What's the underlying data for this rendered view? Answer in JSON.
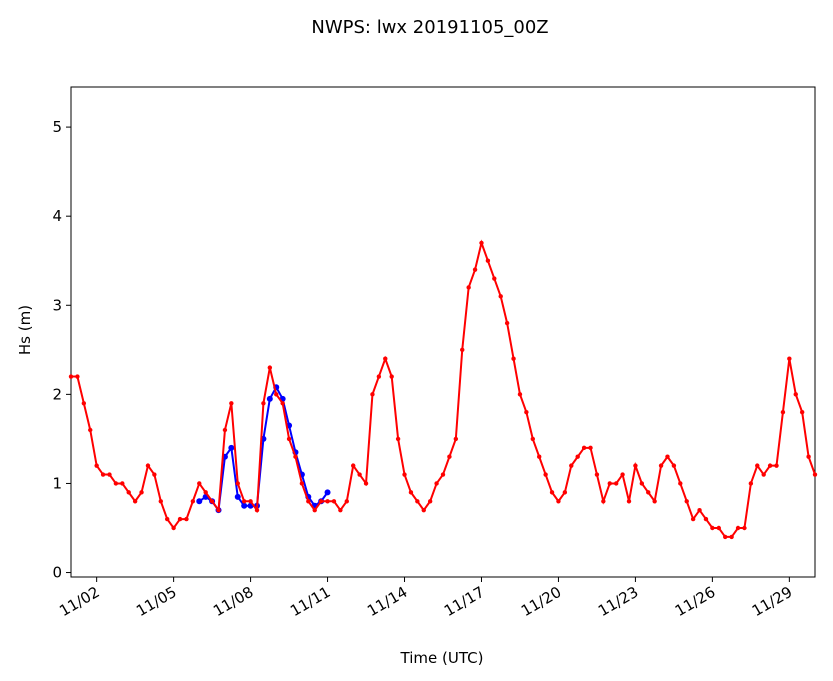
{
  "chart_data": {
    "type": "line",
    "title": "NWPS: lwx 20191105_00Z",
    "xlabel": "Time (UTC)",
    "ylabel": "Hs (m)",
    "xlim": [
      "2019-11-01T00",
      "2019-11-30T00"
    ],
    "xticks": [
      {
        "value": "2019-11-02T00",
        "label": "11/02"
      },
      {
        "value": "2019-11-05T00",
        "label": "11/05"
      },
      {
        "value": "2019-11-08T00",
        "label": "11/08"
      },
      {
        "value": "2019-11-11T00",
        "label": "11/11"
      },
      {
        "value": "2019-11-14T00",
        "label": "11/14"
      },
      {
        "value": "2019-11-17T00",
        "label": "11/17"
      },
      {
        "value": "2019-11-20T00",
        "label": "11/20"
      },
      {
        "value": "2019-11-23T00",
        "label": "11/23"
      },
      {
        "value": "2019-11-26T00",
        "label": "11/26"
      },
      {
        "value": "2019-11-29T00",
        "label": "11/29"
      }
    ],
    "ylim": [
      -0.05,
      5.45
    ],
    "yticks": [
      0,
      1,
      2,
      3,
      4,
      5
    ],
    "series": [
      {
        "color": "#0000ff",
        "x": [
          "2019-11-06T00",
          "2019-11-06T06",
          "2019-11-06T12",
          "2019-11-06T18",
          "2019-11-07T00",
          "2019-11-07T06",
          "2019-11-07T12",
          "2019-11-07T18",
          "2019-11-08T00",
          "2019-11-08T06",
          "2019-11-08T12",
          "2019-11-08T18",
          "2019-11-09T00",
          "2019-11-09T06",
          "2019-11-09T12",
          "2019-11-09T18",
          "2019-11-10T00",
          "2019-11-10T06",
          "2019-11-10T12",
          "2019-11-10T18",
          "2019-11-11T00"
        ],
        "values": [
          0.8,
          0.85,
          0.8,
          0.7,
          1.3,
          1.4,
          0.85,
          0.75,
          0.75,
          0.75,
          1.5,
          1.95,
          2.08,
          1.95,
          1.65,
          1.35,
          1.1,
          0.85,
          0.75,
          0.8,
          0.9
        ]
      },
      {
        "color": "#ff0000",
        "x": [
          "2019-11-01T00",
          "2019-11-01T06",
          "2019-11-01T12",
          "2019-11-01T18",
          "2019-11-02T00",
          "2019-11-02T06",
          "2019-11-02T12",
          "2019-11-02T18",
          "2019-11-03T00",
          "2019-11-03T06",
          "2019-11-03T12",
          "2019-11-03T18",
          "2019-11-04T00",
          "2019-11-04T06",
          "2019-11-04T12",
          "2019-11-04T18",
          "2019-11-05T00",
          "2019-11-05T06",
          "2019-11-05T12",
          "2019-11-05T18",
          "2019-11-06T00",
          "2019-11-06T06",
          "2019-11-06T12",
          "2019-11-06T18",
          "2019-11-07T00",
          "2019-11-07T06",
          "2019-11-07T12",
          "2019-11-07T18",
          "2019-11-08T00",
          "2019-11-08T06",
          "2019-11-08T12",
          "2019-11-08T18",
          "2019-11-09T00",
          "2019-11-09T06",
          "2019-11-09T12",
          "2019-11-09T18",
          "2019-11-10T00",
          "2019-11-10T06",
          "2019-11-10T12",
          "2019-11-10T18",
          "2019-11-11T00",
          "2019-11-11T06",
          "2019-11-11T12",
          "2019-11-11T18",
          "2019-11-12T00",
          "2019-11-12T06",
          "2019-11-12T12",
          "2019-11-12T18",
          "2019-11-13T00",
          "2019-11-13T06",
          "2019-11-13T12",
          "2019-11-13T18",
          "2019-11-14T00",
          "2019-11-14T06",
          "2019-11-14T12",
          "2019-11-14T18",
          "2019-11-15T00",
          "2019-11-15T06",
          "2019-11-15T12",
          "2019-11-15T18",
          "2019-11-16T00",
          "2019-11-16T06",
          "2019-11-16T12",
          "2019-11-16T18",
          "2019-11-17T00",
          "2019-11-17T06",
          "2019-11-17T12",
          "2019-11-17T18",
          "2019-11-18T00",
          "2019-11-18T06",
          "2019-11-18T12",
          "2019-11-18T18",
          "2019-11-19T00",
          "2019-11-19T06",
          "2019-11-19T12",
          "2019-11-19T18",
          "2019-11-20T00",
          "2019-11-20T06",
          "2019-11-20T12",
          "2019-11-20T18",
          "2019-11-21T00",
          "2019-11-21T06",
          "2019-11-21T12",
          "2019-11-21T18",
          "2019-11-22T00",
          "2019-11-22T06",
          "2019-11-22T12",
          "2019-11-22T18",
          "2019-11-23T00",
          "2019-11-23T06",
          "2019-11-23T12",
          "2019-11-23T18",
          "2019-11-24T00",
          "2019-11-24T06",
          "2019-11-24T12",
          "2019-11-24T18",
          "2019-11-25T00",
          "2019-11-25T06",
          "2019-11-25T12",
          "2019-11-25T18",
          "2019-11-26T00",
          "2019-11-26T06",
          "2019-11-26T12",
          "2019-11-26T18",
          "2019-11-27T00",
          "2019-11-27T06",
          "2019-11-27T12",
          "2019-11-27T18",
          "2019-11-28T00",
          "2019-11-28T06",
          "2019-11-28T12",
          "2019-11-28T18",
          "2019-11-29T00",
          "2019-11-29T06",
          "2019-11-29T12",
          "2019-11-29T18",
          "2019-11-30T00"
        ],
        "values": [
          2.2,
          2.2,
          1.9,
          1.6,
          1.2,
          1.1,
          1.1,
          1.0,
          1.0,
          0.9,
          0.8,
          0.9,
          1.2,
          1.1,
          0.8,
          0.6,
          0.5,
          0.6,
          0.6,
          0.8,
          1.0,
          0.9,
          0.8,
          0.7,
          1.6,
          1.9,
          1.0,
          0.8,
          0.8,
          0.7,
          1.9,
          2.3,
          2.0,
          1.9,
          1.5,
          1.3,
          1.0,
          0.8,
          0.7,
          0.8,
          0.8,
          0.8,
          0.7,
          0.8,
          1.2,
          1.1,
          1.0,
          2.0,
          2.2,
          2.4,
          2.2,
          1.5,
          1.1,
          0.9,
          0.8,
          0.7,
          0.8,
          1.0,
          1.1,
          1.3,
          1.5,
          2.5,
          3.2,
          3.4,
          3.7,
          3.5,
          3.3,
          3.1,
          2.8,
          2.4,
          2.0,
          1.8,
          1.5,
          1.3,
          1.1,
          0.9,
          0.8,
          0.9,
          1.2,
          1.3,
          1.4,
          1.4,
          1.1,
          0.8,
          1.0,
          1.0,
          1.1,
          0.8,
          1.2,
          1.0,
          0.9,
          0.8,
          1.2,
          1.3,
          1.2,
          1.0,
          0.8,
          0.6,
          0.7,
          0.6,
          0.5,
          0.5,
          0.4,
          0.4,
          0.5,
          0.5,
          1.0,
          1.2,
          1.1,
          1.2,
          1.2,
          1.8,
          2.4,
          2.0,
          1.8,
          1.3,
          1.1
        ]
      }
    ]
  }
}
